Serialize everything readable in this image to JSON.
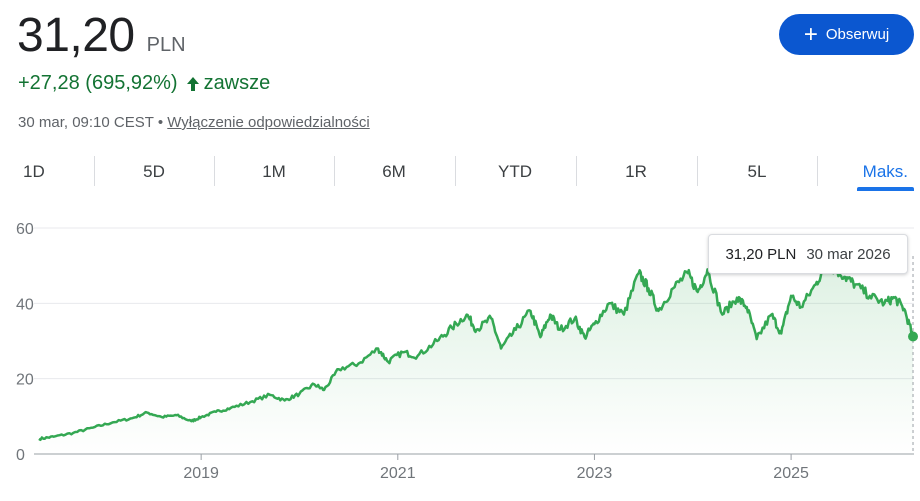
{
  "quote": {
    "price": "31,20",
    "currency": "PLN",
    "change": "+27,28 (695,92%)",
    "change_period": "zawsze",
    "timestamp": "30 mar, 09:10 CEST",
    "separator": "•",
    "disclaimer": "Wyłączenie odpowiedzialności"
  },
  "follow_button": {
    "label": "Obserwuj"
  },
  "tabs": [
    "1D",
    "5D",
    "1M",
    "6M",
    "YTD",
    "1R",
    "5L",
    "Maks."
  ],
  "active_tab": "Maks.",
  "tooltip": {
    "price": "31,20 PLN",
    "date": "30 mar 2026"
  },
  "colors": {
    "line": "#34a853",
    "positive": "#137333",
    "accent": "#0b57d0",
    "active_tab": "#1a73e8"
  },
  "chart_data": {
    "type": "area",
    "x_label_ticks": [
      "2019",
      "2021",
      "2023",
      "2025"
    ],
    "y_ticks": [
      0,
      20,
      40,
      60
    ],
    "ylim": [
      0,
      60
    ],
    "xlim": [
      2017.3,
      2026.25
    ],
    "grid": true,
    "x": [
      2017.35,
      2017.5,
      2017.7,
      2017.9,
      2018.1,
      2018.3,
      2018.45,
      2018.6,
      2018.75,
      2018.9,
      2019.0,
      2019.15,
      2019.3,
      2019.5,
      2019.7,
      2019.85,
      2020.0,
      2020.15,
      2020.25,
      2020.4,
      2020.6,
      2020.8,
      2020.9,
      2021.05,
      2021.2,
      2021.4,
      2021.55,
      2021.7,
      2021.8,
      2021.95,
      2022.05,
      2022.2,
      2022.35,
      2022.45,
      2022.55,
      2022.65,
      2022.8,
      2022.9,
      2023.0,
      2023.15,
      2023.3,
      2023.45,
      2023.55,
      2023.65,
      2023.8,
      2023.95,
      2024.05,
      2024.15,
      2024.3,
      2024.45,
      2024.55,
      2024.65,
      2024.8,
      2024.9,
      2025.0,
      2025.1,
      2025.25,
      2025.35,
      2025.45,
      2025.55,
      2025.65,
      2025.8,
      2025.95,
      2026.05,
      2026.15,
      2026.24
    ],
    "y": [
      4.0,
      4.6,
      5.6,
      7.0,
      8.4,
      9.5,
      11.0,
      9.8,
      10.3,
      8.7,
      9.8,
      11.2,
      12.2,
      13.8,
      15.7,
      14.2,
      16.0,
      18.5,
      17.0,
      22.5,
      24.0,
      28.0,
      24.5,
      27.0,
      26.0,
      30.0,
      33.5,
      37.0,
      33.0,
      36.0,
      28.0,
      33.0,
      38.0,
      31.0,
      37.0,
      33.0,
      36.0,
      31.0,
      34.5,
      40.0,
      37.0,
      48.0,
      44.0,
      38.0,
      44.0,
      48.0,
      43.0,
      49.0,
      37.0,
      41.5,
      39.0,
      30.5,
      37.0,
      32.0,
      42.0,
      39.0,
      45.0,
      50.0,
      49.0,
      47.0,
      45.0,
      42.0,
      40.0,
      41.5,
      38.5,
      31.2
    ]
  }
}
